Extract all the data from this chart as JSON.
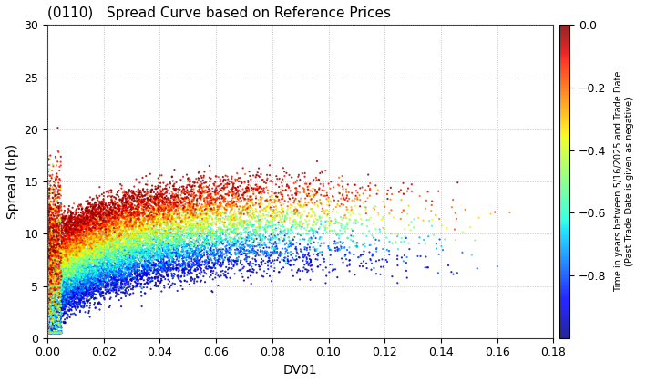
{
  "title": "(0110)   Spread Curve based on Reference Prices",
  "xlabel": "DV01",
  "ylabel": "Spread (bp)",
  "xlim": [
    0.0,
    0.18
  ],
  "ylim": [
    0.0,
    30.0
  ],
  "xticks": [
    0.0,
    0.02,
    0.04,
    0.06,
    0.08,
    0.1,
    0.12,
    0.14,
    0.16,
    0.18
  ],
  "yticks": [
    0,
    5,
    10,
    15,
    20,
    25,
    30
  ],
  "colorbar_label_line1": "Time in years between 5/16/2025 and Trade Date",
  "colorbar_label_line2": "(Past Trade Date is given as negative)",
  "cbar_ticks": [
    0.0,
    -0.2,
    -0.4,
    -0.6,
    -0.8
  ],
  "color_vmin": -1.0,
  "color_vmax": 0.0,
  "background_color": "#ffffff",
  "grid_color": "#888888",
  "title_fontsize": 11,
  "axis_fontsize": 10,
  "tick_fontsize": 9
}
